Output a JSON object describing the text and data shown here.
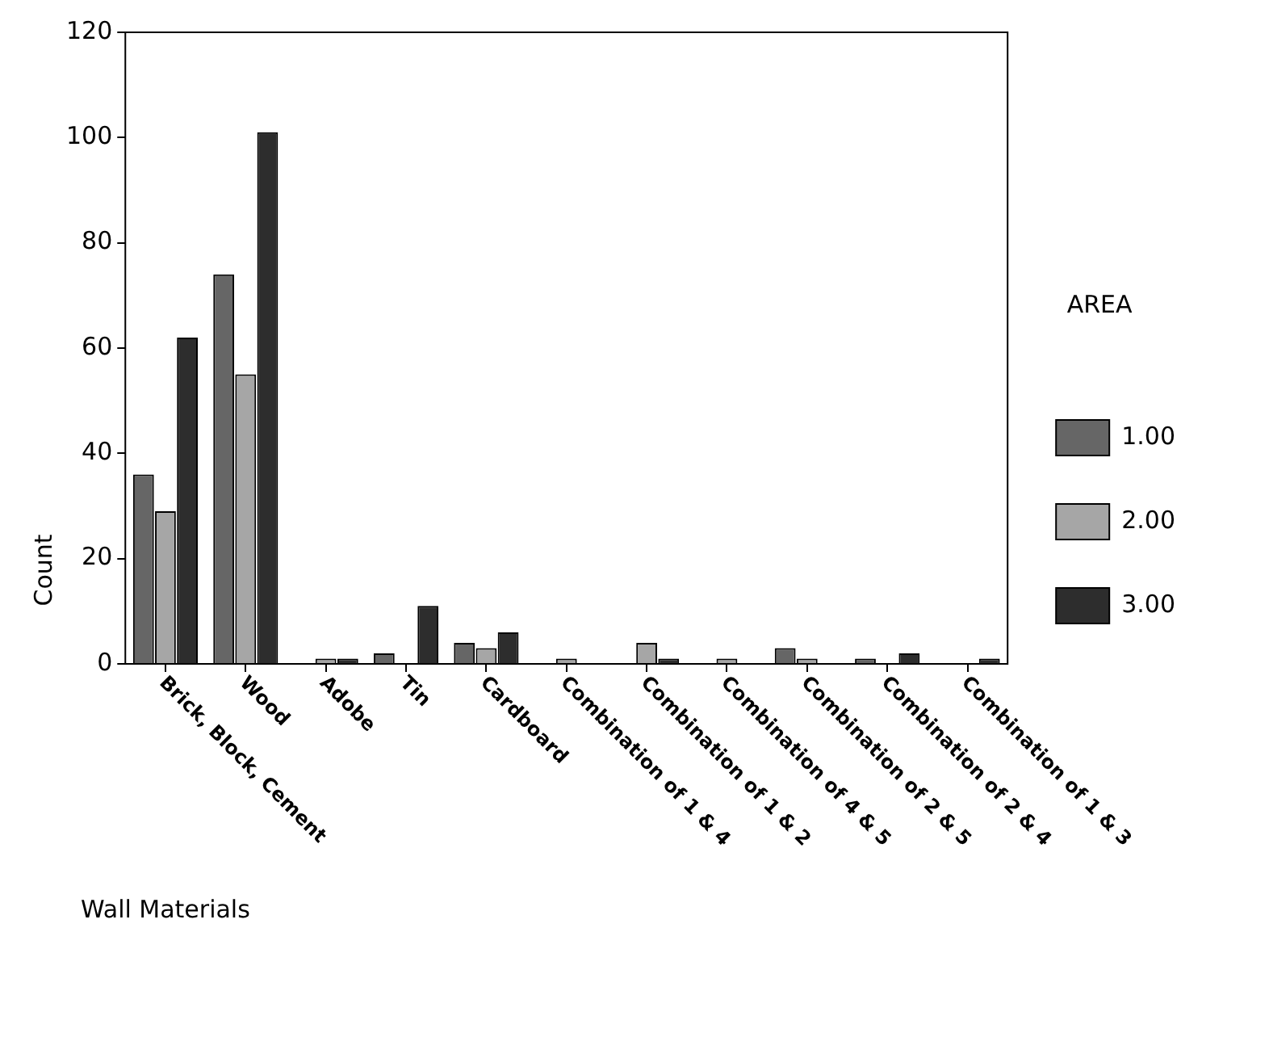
{
  "chart_data": {
    "type": "bar",
    "xlabel": "Wall Materials",
    "ylabel": "Count",
    "legend_title": "AREA",
    "legend": "right",
    "categories": [
      "Brick, Block, Cement",
      "Wood",
      "Adobe",
      "Tin",
      "Cardboard",
      "Combination of 1 & 4",
      "Combination of 1 & 2",
      "Combination of 4 & 5",
      "Combination of 2 & 5",
      "Combination of 2 & 4",
      "Combination of 1 & 3"
    ],
    "series": [
      {
        "name": "1.00",
        "color": "#666666",
        "values": [
          36,
          74,
          0,
          2,
          4,
          0,
          0,
          0,
          3,
          1,
          0
        ]
      },
      {
        "name": "2.00",
        "color": "#a6a6a6",
        "values": [
          29,
          55,
          1,
          0,
          3,
          1,
          4,
          1,
          1,
          0,
          0
        ]
      },
      {
        "name": "3.00",
        "color": "#2d2d2d",
        "values": [
          62,
          101,
          1,
          11,
          6,
          0,
          1,
          0,
          0,
          2,
          1
        ]
      }
    ],
    "ylim": [
      0,
      120
    ],
    "yticks": [
      0,
      20,
      40,
      60,
      80,
      100,
      120
    ],
    "grid": false
  }
}
